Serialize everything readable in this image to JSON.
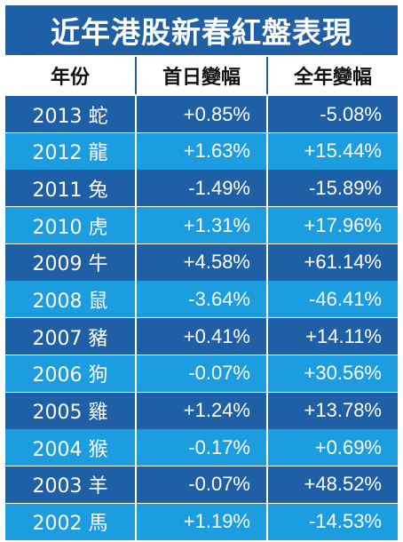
{
  "title": "近年港股新春紅盤表現",
  "colors": {
    "header_blue": "#1f5fa6",
    "row_dark": "#1f5fa6",
    "row_light": "#1b9de0"
  },
  "chart_data": {
    "type": "table",
    "columns": [
      "年份",
      "首日變幅",
      "全年變幅"
    ],
    "rows": [
      {
        "year": "2013 蛇",
        "first_day": "+0.85%",
        "full_year": "-5.08%"
      },
      {
        "year": "2012 龍",
        "first_day": "+1.63%",
        "full_year": "+15.44%"
      },
      {
        "year": "2011 兔",
        "first_day": "-1.49%",
        "full_year": "-15.89%"
      },
      {
        "year": "2010 虎",
        "first_day": "+1.31%",
        "full_year": "+17.96%"
      },
      {
        "year": "2009 牛",
        "first_day": "+4.58%",
        "full_year": "+61.14%"
      },
      {
        "year": "2008 鼠",
        "first_day": "-3.64%",
        "full_year": "-46.41%"
      },
      {
        "year": "2007 豬",
        "first_day": "+0.41%",
        "full_year": "+14.11%"
      },
      {
        "year": "2006 狗",
        "first_day": "-0.07%",
        "full_year": "+30.56%"
      },
      {
        "year": "2005 雞",
        "first_day": "+1.24%",
        "full_year": "+13.78%"
      },
      {
        "year": "2004 猴",
        "first_day": "-0.17%",
        "full_year": "+0.69%"
      },
      {
        "year": "2003 羊",
        "first_day": "-0.07%",
        "full_year": "+48.52%"
      },
      {
        "year": "2002 馬",
        "first_day": "+1.19%",
        "full_year": "-14.53%"
      }
    ]
  }
}
